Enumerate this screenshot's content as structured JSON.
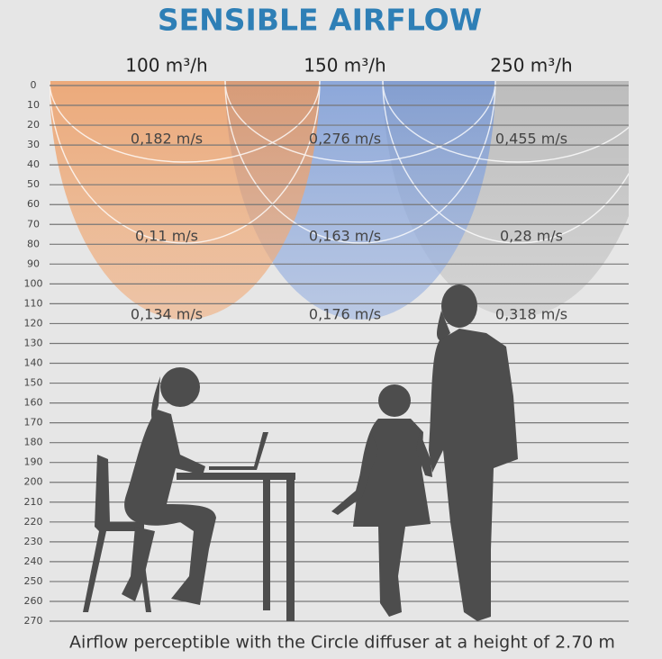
{
  "title": "SENSIBLE AIRFLOW",
  "columns": [
    {
      "header": "100 m³/h",
      "speeds": [
        "0,182 m/s",
        "0,11 m/s",
        "0,134 m/s"
      ]
    },
    {
      "header": "150 m³/h",
      "speeds": [
        "0,276 m/s",
        "0,163 m/s",
        "0,176 m/s"
      ]
    },
    {
      "header": "250 m³/h",
      "speeds": [
        "0,455 m/s",
        "0,28 m/s",
        "0,318 m/s"
      ]
    }
  ],
  "scale": [
    "0",
    "10",
    "20",
    "30",
    "40",
    "50",
    "60",
    "70",
    "80",
    "90",
    "100",
    "110",
    "120",
    "130",
    "140",
    "150",
    "160",
    "170",
    "180",
    "190",
    "200",
    "210",
    "220",
    "230",
    "240",
    "250",
    "260",
    "270"
  ],
  "caption": "Airflow perceptible with the Circle diffuser at a height of 2.70 m"
}
